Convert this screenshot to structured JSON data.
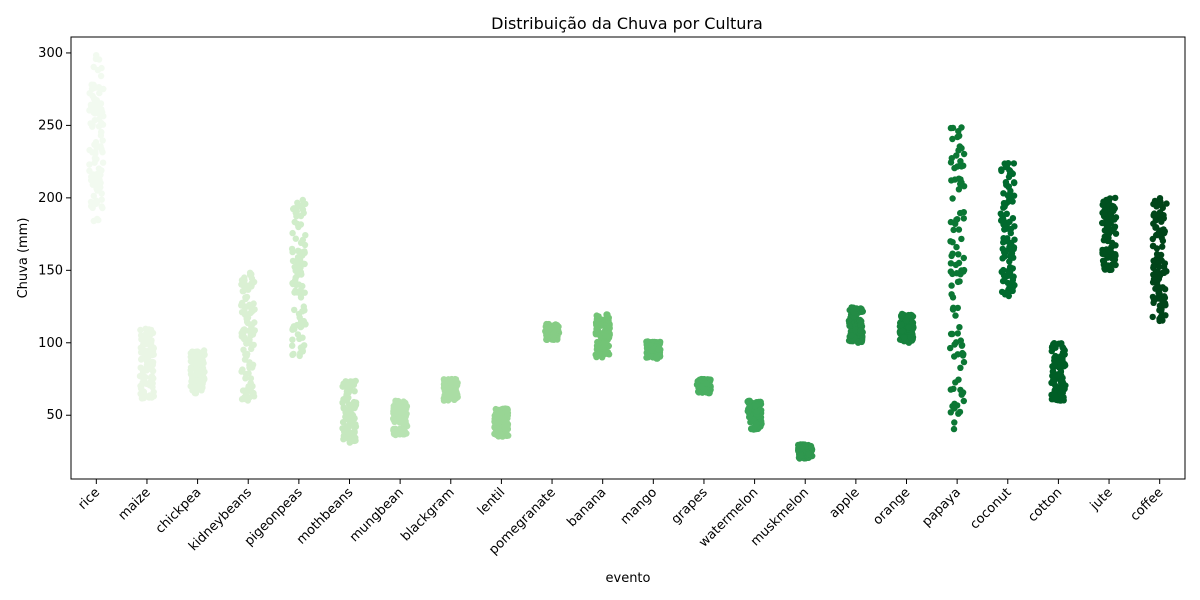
{
  "chart_data": {
    "type": "scatter",
    "subtype": "strip",
    "title": "Distribuição da Chuva por Cultura",
    "xlabel": "evento",
    "ylabel": "Chuva (mm)",
    "ylim": [
      6,
      311
    ],
    "yticks": [
      50,
      100,
      150,
      200,
      250,
      300
    ],
    "grid": false,
    "legend": "none",
    "categories": [
      "rice",
      "maize",
      "chickpea",
      "kidneybeans",
      "pigeonpeas",
      "mothbeans",
      "mungbean",
      "blackgram",
      "lentil",
      "pomegranate",
      "banana",
      "mango",
      "grapes",
      "watermelon",
      "muskmelon",
      "apple",
      "orange",
      "papaya",
      "coconut",
      "cotton",
      "jute",
      "coffee"
    ],
    "ranges": [
      [
        183,
        299
      ],
      [
        61,
        110
      ],
      [
        65,
        95
      ],
      [
        60,
        150
      ],
      [
        90,
        199
      ],
      [
        31,
        75
      ],
      [
        36,
        60
      ],
      [
        60,
        75
      ],
      [
        35,
        55
      ],
      [
        102,
        113
      ],
      [
        90,
        120
      ],
      [
        89,
        101
      ],
      [
        65,
        75
      ],
      [
        40,
        60
      ],
      [
        20,
        30
      ],
      [
        100,
        125
      ],
      [
        100,
        120
      ],
      [
        40,
        249
      ],
      [
        131,
        226
      ],
      [
        60,
        100
      ],
      [
        150,
        200
      ],
      [
        115,
        200
      ]
    ],
    "colors": [
      "#f2faf0",
      "#eaf6e5",
      "#e3f4de",
      "#daf0d3",
      "#d0edca",
      "#c6e8bf",
      "#b8e3b2",
      "#aadda4",
      "#98d594",
      "#86cc85",
      "#73c476",
      "#5fba6d",
      "#4aaf61",
      "#3ba458",
      "#2f974e",
      "#238b45",
      "#17813d",
      "#0b7734",
      "#006a2e",
      "#005e26",
      "#00511f",
      "#004519"
    ],
    "points_per_category": 100
  }
}
